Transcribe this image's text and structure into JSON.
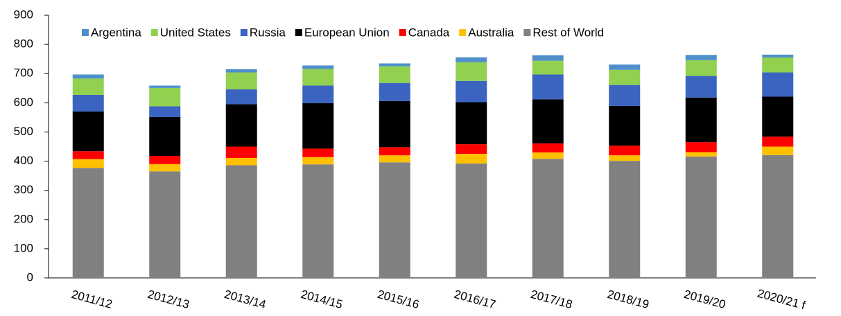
{
  "chart_data": {
    "type": "stacked-bar",
    "categories": [
      "2011/12",
      "2012/13",
      "2013/14",
      "2014/15",
      "2015/16",
      "2016/17",
      "2017/18",
      "2018/19",
      "2019/20",
      "2020/21 f"
    ],
    "series": [
      {
        "name": "Argentina",
        "color": "#4f8fcb",
        "values": [
          14,
          8,
          11,
          12,
          10,
          17,
          19,
          18,
          18,
          10
        ]
      },
      {
        "name": "United States",
        "color": "#92d050",
        "values": [
          56,
          63,
          58,
          57,
          57,
          64,
          47,
          52,
          54,
          51
        ]
      },
      {
        "name": "Russia",
        "color": "#3a64c0",
        "values": [
          57,
          37,
          51,
          60,
          62,
          73,
          85,
          72,
          74,
          83
        ]
      },
      {
        "name": "European Union",
        "color": "#000000",
        "values": [
          136,
          133,
          145,
          156,
          158,
          144,
          151,
          136,
          153,
          137
        ]
      },
      {
        "name": "Canada",
        "color": "#ff0000",
        "values": [
          27,
          28,
          39,
          29,
          28,
          33,
          31,
          33,
          34,
          34
        ]
      },
      {
        "name": "Australia",
        "color": "#ffc000",
        "values": [
          30,
          25,
          25,
          25,
          24,
          33,
          22,
          19,
          15,
          29
        ]
      },
      {
        "name": "Rest of World",
        "color": "#808080",
        "values": [
          377,
          365,
          386,
          389,
          396,
          392,
          408,
          401,
          416,
          421
        ]
      }
    ],
    "ylim": [
      0,
      900
    ],
    "yticks": [
      0,
      100,
      200,
      300,
      400,
      500,
      600,
      700,
      800,
      900
    ],
    "legend": "top",
    "grid": false
  }
}
